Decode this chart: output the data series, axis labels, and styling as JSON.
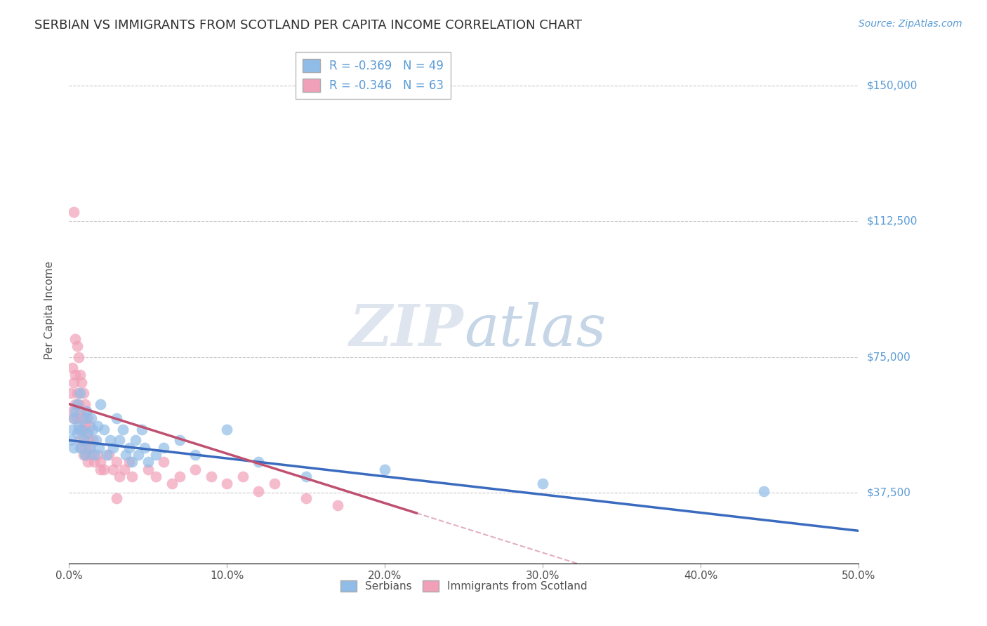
{
  "title": "SERBIAN VS IMMIGRANTS FROM SCOTLAND PER CAPITA INCOME CORRELATION CHART",
  "source": "Source: ZipAtlas.com",
  "ylabel": "Per Capita Income",
  "xlabel_ticks": [
    "0.0%",
    "10.0%",
    "20.0%",
    "30.0%",
    "40.0%",
    "50.0%"
  ],
  "ytick_labels": [
    "$37,500",
    "$75,000",
    "$112,500",
    "$150,000"
  ],
  "ytick_values": [
    37500,
    75000,
    112500,
    150000
  ],
  "xlim": [
    0.0,
    0.5
  ],
  "ylim": [
    18000,
    158000
  ],
  "legend_r_entries": [
    "R = -0.369   N = 49",
    "R = -0.346   N = 63"
  ],
  "legend_series": [
    "Serbians",
    "Immigrants from Scotland"
  ],
  "watermark_zip": "ZIP",
  "watermark_atlas": "atlas",
  "blue_line_color": "#3a6bbf",
  "pink_line_color": "#c05070",
  "blue_scatter_color": "#90bce8",
  "pink_scatter_color": "#f0a0b8",
  "title_color": "#303030",
  "axis_label_color": "#505050",
  "ytick_color": "#5b9bd5",
  "grid_color": "#c8c8c8",
  "background_color": "#ffffff",
  "blue_line_x0": 0.0,
  "blue_line_y0": 52000,
  "blue_line_x1": 0.5,
  "blue_line_y1": 27000,
  "pink_line_x0": 0.0,
  "pink_line_y0": 62000,
  "pink_line_solid_x1": 0.22,
  "pink_line_dashed_x1": 0.38,
  "serbians_x": [
    0.001,
    0.002,
    0.003,
    0.003,
    0.004,
    0.005,
    0.005,
    0.006,
    0.007,
    0.007,
    0.008,
    0.009,
    0.01,
    0.01,
    0.011,
    0.012,
    0.013,
    0.014,
    0.015,
    0.016,
    0.017,
    0.018,
    0.019,
    0.02,
    0.022,
    0.024,
    0.026,
    0.028,
    0.03,
    0.032,
    0.034,
    0.036,
    0.038,
    0.04,
    0.042,
    0.044,
    0.046,
    0.048,
    0.05,
    0.055,
    0.06,
    0.07,
    0.08,
    0.1,
    0.12,
    0.15,
    0.2,
    0.3,
    0.44
  ],
  "serbians_y": [
    52000,
    55000,
    58000,
    50000,
    60000,
    62000,
    54000,
    56000,
    65000,
    50000,
    55000,
    52000,
    58000,
    48000,
    60000,
    54000,
    50000,
    58000,
    55000,
    48000,
    52000,
    56000,
    50000,
    62000,
    55000,
    48000,
    52000,
    50000,
    58000,
    52000,
    55000,
    48000,
    50000,
    46000,
    52000,
    48000,
    55000,
    50000,
    46000,
    48000,
    50000,
    52000,
    48000,
    55000,
    46000,
    42000,
    44000,
    40000,
    38000
  ],
  "scotland_x": [
    0.001,
    0.002,
    0.002,
    0.003,
    0.003,
    0.004,
    0.004,
    0.005,
    0.005,
    0.006,
    0.006,
    0.007,
    0.007,
    0.008,
    0.008,
    0.009,
    0.009,
    0.01,
    0.01,
    0.011,
    0.011,
    0.012,
    0.012,
    0.013,
    0.014,
    0.015,
    0.016,
    0.018,
    0.02,
    0.022,
    0.025,
    0.028,
    0.03,
    0.032,
    0.035,
    0.038,
    0.04,
    0.05,
    0.055,
    0.06,
    0.065,
    0.07,
    0.08,
    0.09,
    0.1,
    0.11,
    0.12,
    0.13,
    0.15,
    0.17,
    0.003,
    0.004,
    0.005,
    0.006,
    0.007,
    0.008,
    0.009,
    0.01,
    0.011,
    0.012,
    0.013,
    0.02,
    0.03
  ],
  "scotland_y": [
    65000,
    72000,
    60000,
    68000,
    58000,
    70000,
    62000,
    65000,
    58000,
    62000,
    55000,
    60000,
    52000,
    58000,
    50000,
    55000,
    48000,
    56000,
    50000,
    54000,
    48000,
    52000,
    46000,
    50000,
    48000,
    52000,
    46000,
    48000,
    46000,
    44000,
    48000,
    44000,
    46000,
    42000,
    44000,
    46000,
    42000,
    44000,
    42000,
    46000,
    40000,
    42000,
    44000,
    42000,
    40000,
    42000,
    38000,
    40000,
    36000,
    34000,
    115000,
    80000,
    78000,
    75000,
    70000,
    68000,
    65000,
    62000,
    60000,
    58000,
    56000,
    44000,
    36000
  ]
}
